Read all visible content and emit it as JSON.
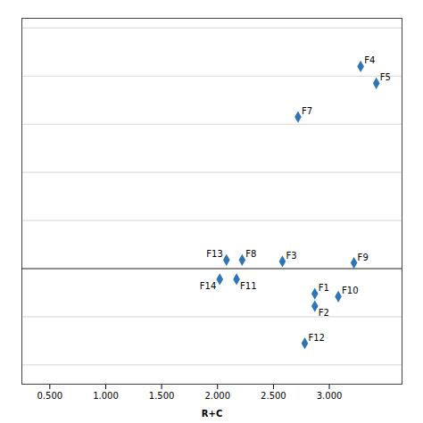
{
  "chart_data": {
    "type": "scatter",
    "x": [
      3.28,
      3.42,
      2.72,
      2.22,
      2.08,
      2.58,
      2.02,
      2.17,
      3.22,
      2.87,
      3.08,
      2.87,
      2.78
    ],
    "values": [
      4.2,
      3.85,
      3.15,
      0.18,
      0.18,
      0.15,
      -0.22,
      -0.22,
      0.12,
      -0.52,
      -0.58,
      -0.78,
      -1.55
    ],
    "labels": [
      "F4",
      "F5",
      "F7",
      "F8",
      "F13",
      "F3",
      "F14",
      "F11",
      "F9",
      "F1",
      "F10",
      "F2",
      "F12"
    ],
    "xlabel": "R+C",
    "xlim": [
      0.25,
      3.65
    ],
    "ylim": [
      -2.4,
      5.2
    ],
    "xticks": [
      {
        "value": 0.5,
        "label": "0.500"
      },
      {
        "value": 1.0,
        "label": "1.000"
      },
      {
        "value": 1.5,
        "label": "1.500"
      },
      {
        "value": 2.0,
        "label": "2.000"
      },
      {
        "value": 2.5,
        "label": "2.500"
      },
      {
        "value": 3.0,
        "label": "3.000"
      }
    ],
    "yticks": [
      -2,
      -1,
      0,
      1,
      2,
      3,
      4,
      5
    ],
    "grid": true,
    "tick_labels": "x",
    "color": "#2E75B6",
    "marker": "diamond"
  }
}
